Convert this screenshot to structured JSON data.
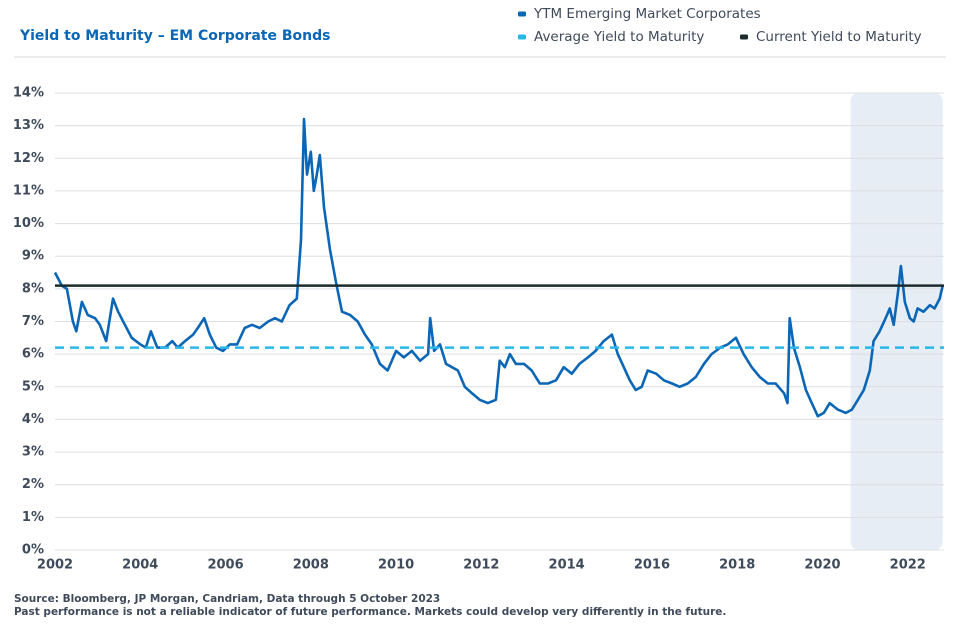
{
  "chart_data": {
    "type": "line",
    "title": "Yield to Maturity – EM Corporate Bonds",
    "source": "Source: Bloomberg, JP Morgan, Candriam, Data through 5 October 2023",
    "disclaimer": "Past performance is not a reliable indicator of future performance. Markets could develop very differently in the future.",
    "x": [
      2002,
      2002.16,
      2002.28,
      2002.42,
      2002.5,
      2002.63,
      2002.77,
      2002.94,
      2003.05,
      2003.2,
      2003.36,
      2003.48,
      2003.64,
      2003.8,
      2004,
      2004.13,
      2004.25,
      2004.4,
      2004.58,
      2004.75,
      2004.88,
      2005.05,
      2005.24,
      2005.35,
      2005.5,
      2005.63,
      2005.78,
      2005.94,
      2006.1,
      2006.27,
      2006.45,
      2006.62,
      2006.8,
      2007,
      2007.16,
      2007.32,
      2007.5,
      2007.67,
      2007.77,
      2007.84,
      2007.91,
      2008,
      2008.07,
      2008.14,
      2008.21,
      2008.31,
      2008.45,
      2008.59,
      2008.73,
      2008.92,
      2009.1,
      2009.27,
      2009.43,
      2009.62,
      2009.8,
      2010,
      2010.18,
      2010.37,
      2010.56,
      2010.75,
      2010.8,
      2010.89,
      2011.03,
      2011.17,
      2011.31,
      2011.45,
      2011.61,
      2011.78,
      2011.96,
      2012.15,
      2012.34,
      2012.43,
      2012.55,
      2012.67,
      2012.81,
      2013,
      2013.18,
      2013.37,
      2013.56,
      2013.75,
      2013.93,
      2014.12,
      2014.3,
      2014.5,
      2014.68,
      2014.87,
      2015.06,
      2015.2,
      2015.34,
      2015.48,
      2015.62,
      2015.76,
      2015.9,
      2016.1,
      2016.28,
      2016.47,
      2016.65,
      2016.84,
      2017.03,
      2017.22,
      2017.4,
      2017.6,
      2017.78,
      2017.97,
      2018.15,
      2018.34,
      2018.53,
      2018.72,
      2018.9,
      2019.1,
      2019.18,
      2019.23,
      2019.33,
      2019.47,
      2019.61,
      2019.75,
      2019.89,
      2020.03,
      2020.17,
      2020.36,
      2020.55,
      2020.69,
      2020.83,
      2020.97,
      2021.11,
      2021.2,
      2021.34,
      2021.48,
      2021.58,
      2021.67,
      2021.77,
      2021.84,
      2021.93,
      2022.05,
      2022.14,
      2022.23,
      2022.37,
      2022.52,
      2022.63,
      2022.75,
      2022.82
    ],
    "series": [
      {
        "name": "YTM Emerging Market Corporates",
        "color": "#0b66b5",
        "values": [
          8.5,
          8.1,
          8.0,
          7.0,
          6.7,
          7.6,
          7.2,
          7.1,
          6.9,
          6.4,
          7.7,
          7.3,
          6.9,
          6.5,
          6.3,
          6.2,
          6.7,
          6.2,
          6.2,
          6.4,
          6.2,
          6.4,
          6.6,
          6.8,
          7.1,
          6.6,
          6.2,
          6.1,
          6.3,
          6.3,
          6.8,
          6.9,
          6.8,
          7.0,
          7.1,
          7.0,
          7.5,
          7.7,
          9.5,
          13.2,
          11.5,
          12.2,
          11.0,
          11.5,
          12.1,
          10.5,
          9.2,
          8.2,
          7.3,
          7.2,
          7.0,
          6.6,
          6.3,
          5.7,
          5.5,
          6.1,
          5.9,
          6.1,
          5.8,
          6.0,
          7.1,
          6.1,
          6.3,
          5.7,
          5.6,
          5.5,
          5.0,
          4.8,
          4.6,
          4.5,
          4.6,
          5.8,
          5.6,
          6.0,
          5.7,
          5.7,
          5.5,
          5.1,
          5.1,
          5.2,
          5.6,
          5.4,
          5.7,
          5.9,
          6.1,
          6.4,
          6.6,
          6.0,
          5.6,
          5.2,
          4.9,
          5.0,
          5.5,
          5.4,
          5.2,
          5.1,
          5.0,
          5.1,
          5.3,
          5.7,
          6.0,
          6.2,
          6.3,
          6.5,
          6.0,
          5.6,
          5.3,
          5.1,
          5.1,
          4.8,
          4.5,
          7.1,
          6.2,
          5.6,
          4.9,
          4.5,
          4.1,
          4.2,
          4.5,
          4.3,
          4.2,
          4.3,
          4.6,
          4.9,
          5.5,
          6.4,
          6.7,
          7.1,
          7.4,
          6.9,
          7.9,
          8.7,
          7.6,
          7.1,
          7.0,
          7.4,
          7.3,
          7.5,
          7.4,
          7.7,
          8.1
        ]
      }
    ],
    "reference_lines": [
      {
        "name": "Average Yield to Maturity",
        "value": 6.2,
        "color": "#29b6e8",
        "dashed": true
      },
      {
        "name": "Current Yield to Maturity",
        "value": 8.1,
        "color": "#1b2b2e",
        "dashed": false
      }
    ],
    "highlight_x": [
      2020.66,
      2022.82
    ],
    "xlim": [
      2002,
      2022.85
    ],
    "xticks": [
      2002,
      2004,
      2006,
      2008,
      2010,
      2012,
      2014,
      2016,
      2018,
      2020,
      2022
    ],
    "ylim": [
      0,
      14
    ],
    "yticks": [
      {
        "value": 0,
        "label": "0%"
      },
      {
        "value": 1,
        "label": "1%"
      },
      {
        "value": 2,
        "label": "2%"
      },
      {
        "value": 3,
        "label": "3%"
      },
      {
        "value": 4,
        "label": "4%"
      },
      {
        "value": 5,
        "label": "5%"
      },
      {
        "value": 6,
        "label": "6%"
      },
      {
        "value": 7,
        "label": "7%"
      },
      {
        "value": 8,
        "label": "8%"
      },
      {
        "value": 9,
        "label": "9%"
      },
      {
        "value": 10,
        "label": "10%"
      },
      {
        "value": 11,
        "label": "11%"
      },
      {
        "value": 12,
        "label": "12%"
      },
      {
        "value": 13,
        "label": "13%"
      },
      {
        "value": 14,
        "label": "14%"
      }
    ],
    "grid": true
  }
}
